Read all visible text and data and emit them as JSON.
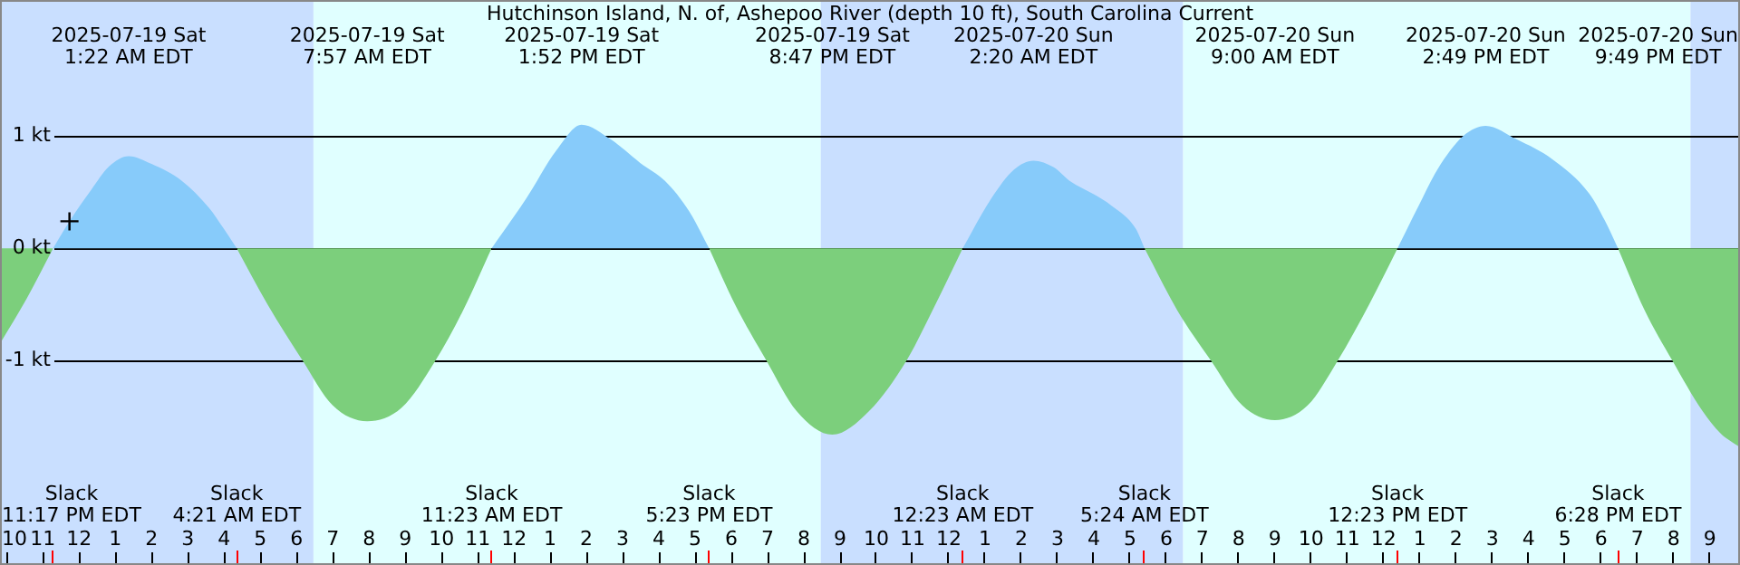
{
  "chart_data": {
    "type": "area",
    "title": "Hutchinson Island, N. of, Ashepoo River (depth 10 ft), South Carolina Current",
    "xlim": [
      "2025-07-18T21:49",
      "2025-07-20T21:50"
    ],
    "ylim": [
      -2.82,
      2.21
    ],
    "xticks": [
      {
        "value": "2025-07-18T22:00",
        "label": "10"
      },
      {
        "value": "2025-07-18T23:00",
        "label": "11"
      },
      {
        "value": "2025-07-19T00:00",
        "label": "12"
      },
      {
        "value": "2025-07-19T01:00",
        "label": "1"
      },
      {
        "value": "2025-07-19T02:00",
        "label": "2"
      },
      {
        "value": "2025-07-19T03:00",
        "label": "3"
      },
      {
        "value": "2025-07-19T04:00",
        "label": "4"
      },
      {
        "value": "2025-07-19T05:00",
        "label": "5"
      },
      {
        "value": "2025-07-19T06:00",
        "label": "6"
      },
      {
        "value": "2025-07-19T07:00",
        "label": "7"
      },
      {
        "value": "2025-07-19T08:00",
        "label": "8"
      },
      {
        "value": "2025-07-19T09:00",
        "label": "9"
      },
      {
        "value": "2025-07-19T10:00",
        "label": "10"
      },
      {
        "value": "2025-07-19T11:00",
        "label": "11"
      },
      {
        "value": "2025-07-19T12:00",
        "label": "12"
      },
      {
        "value": "2025-07-19T13:00",
        "label": "1"
      },
      {
        "value": "2025-07-19T14:00",
        "label": "2"
      },
      {
        "value": "2025-07-19T15:00",
        "label": "3"
      },
      {
        "value": "2025-07-19T16:00",
        "label": "4"
      },
      {
        "value": "2025-07-19T17:00",
        "label": "5"
      },
      {
        "value": "2025-07-19T18:00",
        "label": "6"
      },
      {
        "value": "2025-07-19T19:00",
        "label": "7"
      },
      {
        "value": "2025-07-19T20:00",
        "label": "8"
      },
      {
        "value": "2025-07-19T21:00",
        "label": "9"
      },
      {
        "value": "2025-07-19T22:00",
        "label": "10"
      },
      {
        "value": "2025-07-19T23:00",
        "label": "11"
      },
      {
        "value": "2025-07-20T00:00",
        "label": "12"
      },
      {
        "value": "2025-07-20T01:00",
        "label": "1"
      },
      {
        "value": "2025-07-20T02:00",
        "label": "2"
      },
      {
        "value": "2025-07-20T03:00",
        "label": "3"
      },
      {
        "value": "2025-07-20T04:00",
        "label": "4"
      },
      {
        "value": "2025-07-20T05:00",
        "label": "5"
      },
      {
        "value": "2025-07-20T06:00",
        "label": "6"
      },
      {
        "value": "2025-07-20T07:00",
        "label": "7"
      },
      {
        "value": "2025-07-20T08:00",
        "label": "8"
      },
      {
        "value": "2025-07-20T09:00",
        "label": "9"
      },
      {
        "value": "2025-07-20T10:00",
        "label": "10"
      },
      {
        "value": "2025-07-20T11:00",
        "label": "11"
      },
      {
        "value": "2025-07-20T12:00",
        "label": "12"
      },
      {
        "value": "2025-07-20T13:00",
        "label": "1"
      },
      {
        "value": "2025-07-20T14:00",
        "label": "2"
      },
      {
        "value": "2025-07-20T15:00",
        "label": "3"
      },
      {
        "value": "2025-07-20T16:00",
        "label": "4"
      },
      {
        "value": "2025-07-20T17:00",
        "label": "5"
      },
      {
        "value": "2025-07-20T18:00",
        "label": "6"
      },
      {
        "value": "2025-07-20T19:00",
        "label": "7"
      },
      {
        "value": "2025-07-20T20:00",
        "label": "8"
      },
      {
        "value": "2025-07-20T21:00",
        "label": "9"
      }
    ],
    "yticks": [
      {
        "value": 1,
        "label": "1 kt"
      },
      {
        "value": 0,
        "label": "0 kt"
      },
      {
        "value": -1,
        "label": "-1 kt"
      }
    ],
    "grid": "y",
    "legend": false,
    "series": [
      {
        "color": "#87cbfa",
        "x": [
          "2025-07-18T23:17",
          "2025-07-18T23:44",
          "2025-07-19T00:20",
          "2025-07-19T00:50",
          "2025-07-19T01:22",
          "2025-07-19T02:00",
          "2025-07-19T02:50",
          "2025-07-19T03:35",
          "2025-07-19T04:00",
          "2025-07-19T04:21",
          "2025-07-19T07:54",
          "2025-07-19T11:23",
          "2025-07-19T12:20",
          "2025-07-19T13:10",
          "2025-07-19T13:52",
          "2025-07-19T14:40",
          "2025-07-19T15:29",
          "2025-07-19T16:10",
          "2025-07-19T16:50",
          "2025-07-19T17:23",
          "2025-07-19T20:54",
          "2025-07-20T00:23",
          "2025-07-20T01:10",
          "2025-07-20T01:48",
          "2025-07-20T02:20",
          "2025-07-20T02:54",
          "2025-07-20T03:20",
          "2025-07-20T04:00",
          "2025-07-20T04:29",
          "2025-07-20T05:10",
          "2025-07-20T05:24",
          "2025-07-20T08:54",
          "2025-07-20T12:23",
          "2025-07-20T13:00",
          "2025-07-20T13:29",
          "2025-07-20T14:12",
          "2025-07-20T14:49",
          "2025-07-20T15:40",
          "2025-07-20T16:40",
          "2025-07-20T17:40",
          "2025-07-20T18:06",
          "2025-07-20T18:28"
        ],
        "values": [
          0,
          0.24,
          0.52,
          0.73,
          0.82,
          0.75,
          0.6,
          0.36,
          0.17,
          0,
          null,
          0,
          0.44,
          0.87,
          1.1,
          0.97,
          0.76,
          0.6,
          0.33,
          0,
          null,
          0,
          0.44,
          0.7,
          0.78,
          0.72,
          0.6,
          0.48,
          0.38,
          0.17,
          0,
          null,
          0,
          0.4,
          0.7,
          1.0,
          1.09,
          0.97,
          0.79,
          0.49,
          0.25,
          0
        ]
      },
      {
        "color": "#7ccf7c",
        "x": [
          "2025-07-18T21:49",
          "2025-07-18T22:33",
          "2025-07-18T23:17",
          "2025-07-19T01:48",
          "2025-07-19T04:21",
          "2025-07-19T05:12",
          "2025-07-19T06:10",
          "2025-07-19T07:00",
          "2025-07-19T07:57",
          "2025-07-19T08:54",
          "2025-07-19T09:50",
          "2025-07-19T10:36",
          "2025-07-19T11:23",
          "2025-07-19T14:24",
          "2025-07-19T17:23",
          "2025-07-19T18:06",
          "2025-07-19T18:58",
          "2025-07-19T19:48",
          "2025-07-19T20:47",
          "2025-07-19T21:48",
          "2025-07-19T22:50",
          "2025-07-19T23:36",
          "2025-07-20T00:23",
          "2025-07-20T02:54",
          "2025-07-20T05:24",
          "2025-07-20T06:18",
          "2025-07-20T07:14",
          "2025-07-20T08:06",
          "2025-07-20T09:00",
          "2025-07-20T09:54",
          "2025-07-20T10:44",
          "2025-07-20T11:36",
          "2025-07-20T12:23",
          "2025-07-20T15:24",
          "2025-07-20T18:28",
          "2025-07-20T19:12",
          "2025-07-20T19:58",
          "2025-07-20T20:48",
          "2025-07-20T21:18",
          "2025-07-20T21:49"
        ],
        "values": [
          -0.85,
          -0.45,
          0,
          null,
          0,
          -0.5,
          -1.0,
          -1.4,
          -1.54,
          -1.42,
          -1.0,
          -0.55,
          0,
          null,
          0,
          -0.5,
          -1.0,
          -1.45,
          -1.66,
          -1.45,
          -1.0,
          -0.52,
          0,
          null,
          0,
          -0.55,
          -1.0,
          -1.4,
          -1.53,
          -1.4,
          -1.0,
          -0.5,
          0,
          null,
          0,
          -0.55,
          -1.0,
          -1.45,
          -1.65,
          -1.77
        ]
      },
      {
        "type": "scatter",
        "color": "#000000",
        "marker": "cross",
        "x": [
          "2025-07-18T23:44"
        ],
        "values": [
          0.24
        ]
      }
    ],
    "bands": [
      {
        "axis": "x",
        "from": "2025-07-18T21:49",
        "to": "2025-07-19T06:28",
        "color": "#c9dfff"
      },
      {
        "axis": "x",
        "from": "2025-07-19T06:28",
        "to": "2025-07-19T20:28",
        "color": "#e0ffff"
      },
      {
        "axis": "x",
        "from": "2025-07-19T20:28",
        "to": "2025-07-20T06:28",
        "color": "#c9dfff"
      },
      {
        "axis": "x",
        "from": "2025-07-20T06:28",
        "to": "2025-07-20T20:28",
        "color": "#e0ffff"
      },
      {
        "axis": "x",
        "from": "2025-07-20T20:28",
        "to": "2025-07-20T21:50",
        "color": "#c9dfff"
      }
    ],
    "annotations": [
      "Slack\n11:17 PM EDT",
      "2025-07-19 Sat\n1:22 AM EDT",
      "Slack\n4:21 AM EDT",
      "2025-07-19 Sat\n7:57 AM EDT",
      "Slack\n11:23 AM EDT",
      "2025-07-19 Sat\n1:52 PM EDT",
      "Slack\n5:23 PM EDT",
      "2025-07-19 Sat\n8:47 PM EDT",
      "Slack\n12:23 AM EDT",
      "2025-07-20 Sun\n2:20 AM EDT",
      "Slack\n5:24 AM EDT",
      "2025-07-20 Sun\n9:00 AM EDT",
      "Slack\n12:23 PM EDT",
      "2025-07-20 Sun\n2:49 PM EDT",
      "Slack\n6:28 PM EDT",
      "2025-07-20 Sun\n9:49 PM EDT"
    ]
  }
}
